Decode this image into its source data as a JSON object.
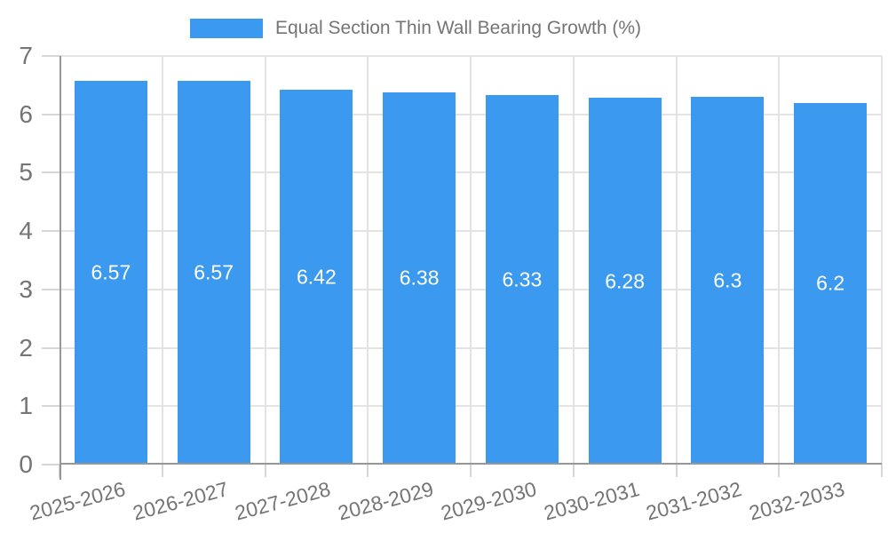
{
  "legend": {
    "label": "Equal Section Thin Wall Bearing Growth (%)",
    "position": "top"
  },
  "colors": {
    "bar": "#3B99F0",
    "grid": "#E3E3E3",
    "axis": "#979797",
    "tick": "#D6D6D6",
    "text": "#757575",
    "bar_label": "#FFFFFF",
    "background": "#FFFFFF"
  },
  "chart_data": {
    "type": "bar",
    "title": "Equal Section Thin Wall Bearing Growth (%)",
    "categories": [
      "2025-2026",
      "2026-2027",
      "2027-2028",
      "2028-2029",
      "2029-2030",
      "2030-2031",
      "2031-2032",
      "2032-2033"
    ],
    "series": [
      {
        "name": "Equal Section Thin Wall Bearing Growth (%)",
        "values": [
          6.57,
          6.57,
          6.42,
          6.38,
          6.33,
          6.28,
          6.3,
          6.2
        ],
        "labels": [
          "6.57",
          "6.57",
          "6.42",
          "6.38",
          "6.33",
          "6.28",
          "6.3",
          "6.2"
        ]
      }
    ],
    "xlabel": "",
    "ylabel": "",
    "ylim": [
      0,
      7
    ],
    "yticks": [
      0,
      1,
      2,
      3,
      4,
      5,
      6,
      7
    ],
    "grid": true,
    "grid_vertical": true,
    "legend_position": "top",
    "x_tick_rotation_deg": -15,
    "bar_label_position": "middle"
  }
}
